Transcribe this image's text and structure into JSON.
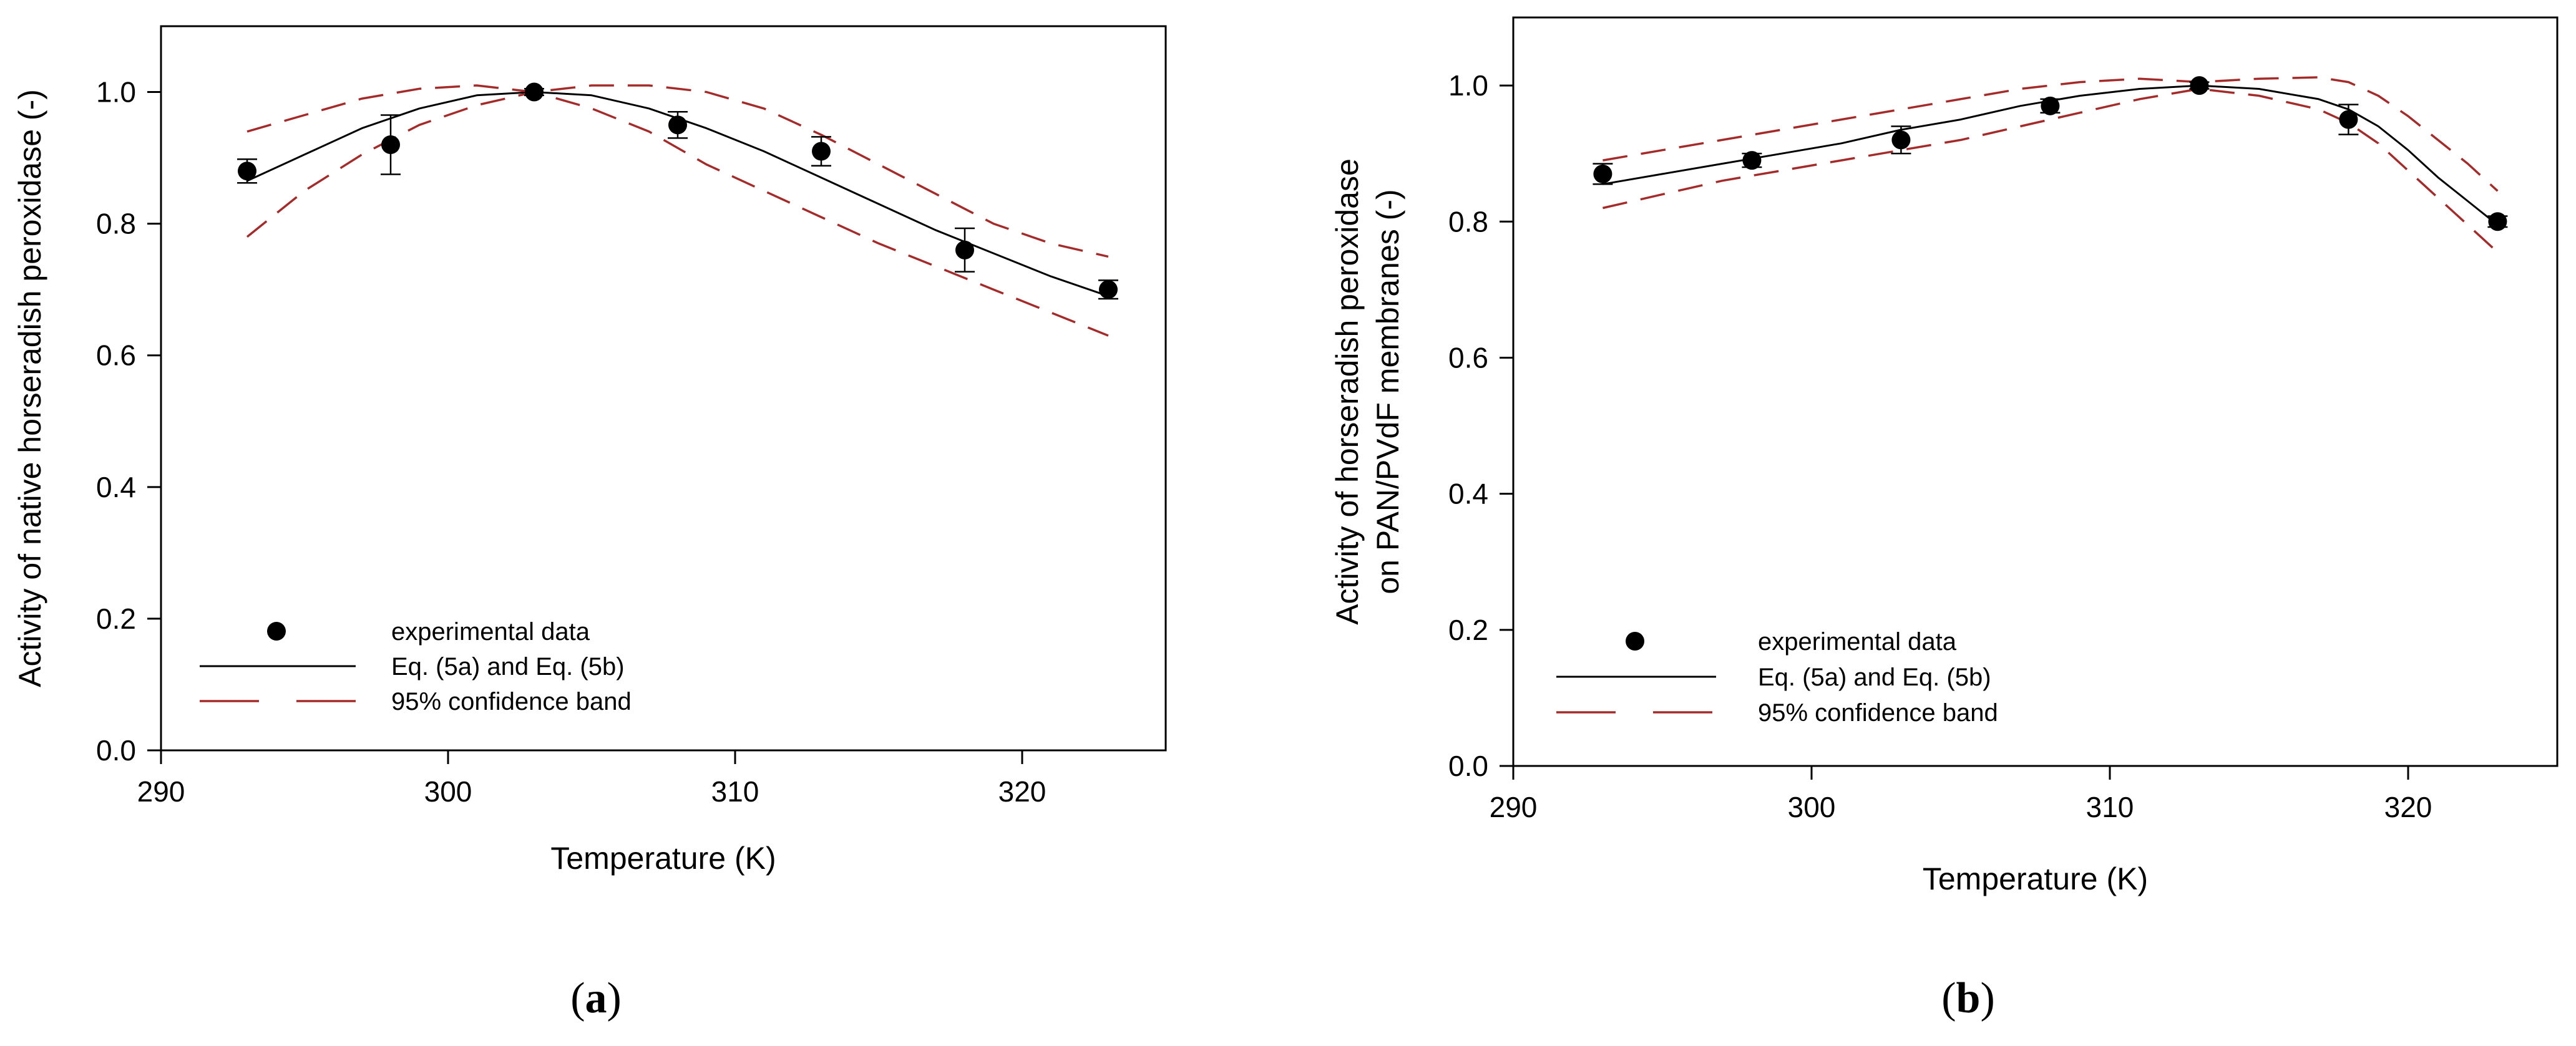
{
  "chart_data": [
    {
      "type": "scatter",
      "panel_label": "a",
      "xlabel": "Temperature (K)",
      "ylabel_lines": [
        "Activity of native horseradish peroxidase  (-)"
      ],
      "xlim": [
        290,
        325
      ],
      "ylim": [
        0.0,
        1.1
      ],
      "xticks": [
        290,
        300,
        310,
        320
      ],
      "yticks": [
        0.0,
        0.2,
        0.4,
        0.6,
        0.8,
        1.0
      ],
      "xtick_labels": [
        "290",
        "300",
        "310",
        "320"
      ],
      "ytick_labels": [
        "0.0",
        "0.2",
        "0.4",
        "0.6",
        "0.8",
        "1.0"
      ],
      "legend": {
        "placement": "bottom-left",
        "entries": [
          "experimental data",
          "Eq. (5a) and Eq. (5b)",
          "95% confidence band"
        ]
      },
      "series": [
        {
          "name": "experimental data",
          "kind": "points",
          "x": [
            293,
            298,
            303,
            308,
            313,
            318,
            323
          ],
          "y": [
            0.88,
            0.92,
            1.0,
            0.95,
            0.91,
            0.76,
            0.7
          ],
          "yerr": [
            0.018,
            0.045,
            0.005,
            0.02,
            0.022,
            0.033,
            0.014
          ]
        },
        {
          "name": "Eq. (5a) and Eq. (5b)",
          "kind": "line",
          "x": [
            293,
            295,
            297,
            299,
            301,
            303,
            305,
            307,
            309,
            311,
            313,
            315,
            317,
            319,
            321,
            323
          ],
          "y": [
            0.865,
            0.905,
            0.945,
            0.975,
            0.995,
            1.0,
            0.995,
            0.975,
            0.945,
            0.91,
            0.87,
            0.83,
            0.79,
            0.755,
            0.72,
            0.69
          ]
        },
        {
          "name": "95% confidence band (upper)",
          "kind": "dashed",
          "x": [
            293,
            295,
            297,
            299,
            301,
            303,
            305,
            307,
            309,
            311,
            313,
            315,
            317,
            319,
            321,
            323
          ],
          "y": [
            0.94,
            0.965,
            0.99,
            1.005,
            1.01,
            1.0,
            1.01,
            1.01,
            1.0,
            0.975,
            0.935,
            0.89,
            0.845,
            0.8,
            0.77,
            0.75
          ]
        },
        {
          "name": "95% confidence band (lower)",
          "kind": "dashed",
          "x": [
            293,
            295,
            297,
            299,
            301,
            303,
            305,
            307,
            309,
            311,
            313,
            315,
            317,
            319,
            321,
            323
          ],
          "y": [
            0.78,
            0.85,
            0.905,
            0.95,
            0.98,
            1.0,
            0.975,
            0.94,
            0.89,
            0.85,
            0.81,
            0.77,
            0.735,
            0.7,
            0.665,
            0.63
          ]
        }
      ]
    },
    {
      "type": "scatter",
      "panel_label": "b",
      "xlabel": "Temperature (K)",
      "ylabel_lines": [
        "Activity of  horseradish peroxidase",
        "on PAN/PVdF membranes  (-)"
      ],
      "xlim": [
        290,
        325
      ],
      "ylim": [
        0.0,
        1.1
      ],
      "xticks": [
        290,
        300,
        310,
        320
      ],
      "yticks": [
        0.0,
        0.2,
        0.4,
        0.6,
        0.8,
        1.0
      ],
      "xtick_labels": [
        "290",
        "300",
        "310",
        "320"
      ],
      "ytick_labels": [
        "0.0",
        "0.2",
        "0.4",
        "0.6",
        "0.8",
        "1.0"
      ],
      "legend": {
        "placement": "bottom-left",
        "entries": [
          "experimental data",
          "Eq. (5a) and Eq. (5b)",
          "95% confidence band"
        ]
      },
      "series": [
        {
          "name": "experimental data",
          "kind": "points",
          "x": [
            293,
            298,
            303,
            308,
            313,
            318,
            323
          ],
          "y": [
            0.87,
            0.89,
            0.92,
            0.97,
            1.0,
            0.95,
            0.8
          ],
          "yerr": [
            0.015,
            0.01,
            0.02,
            0.01,
            0.005,
            0.022,
            0.008
          ]
        },
        {
          "name": "Eq. (5a) and Eq. (5b)",
          "kind": "line",
          "x": [
            293,
            295,
            297,
            299,
            301,
            303,
            305,
            307,
            309,
            311,
            313,
            315,
            317,
            318,
            319,
            320,
            321,
            322,
            323
          ],
          "y": [
            0.855,
            0.87,
            0.885,
            0.9,
            0.915,
            0.935,
            0.95,
            0.97,
            0.985,
            0.995,
            1.0,
            0.995,
            0.98,
            0.965,
            0.94,
            0.905,
            0.865,
            0.83,
            0.795
          ]
        },
        {
          "name": "95% confidence band (upper)",
          "kind": "dashed",
          "x": [
            293,
            295,
            297,
            299,
            301,
            303,
            305,
            307,
            309,
            311,
            313,
            315,
            317,
            318,
            319,
            320,
            321,
            322,
            323
          ],
          "y": [
            0.89,
            0.905,
            0.92,
            0.935,
            0.95,
            0.965,
            0.98,
            0.995,
            1.005,
            1.01,
            1.005,
            1.01,
            1.012,
            1.005,
            0.985,
            0.955,
            0.92,
            0.885,
            0.845
          ]
        },
        {
          "name": "95% confidence band (lower)",
          "kind": "dashed",
          "x": [
            293,
            295,
            297,
            299,
            301,
            303,
            305,
            307,
            309,
            311,
            313,
            315,
            317,
            318,
            319,
            320,
            321,
            322,
            323
          ],
          "y": [
            0.82,
            0.84,
            0.86,
            0.875,
            0.89,
            0.905,
            0.92,
            0.94,
            0.96,
            0.98,
            0.995,
            0.985,
            0.965,
            0.945,
            0.915,
            0.875,
            0.835,
            0.795,
            0.755
          ]
        }
      ]
    }
  ],
  "colors": {
    "axes": "#000000",
    "points": "#000000",
    "fit_line": "#000000",
    "confidence_band": "#a52a2a"
  }
}
